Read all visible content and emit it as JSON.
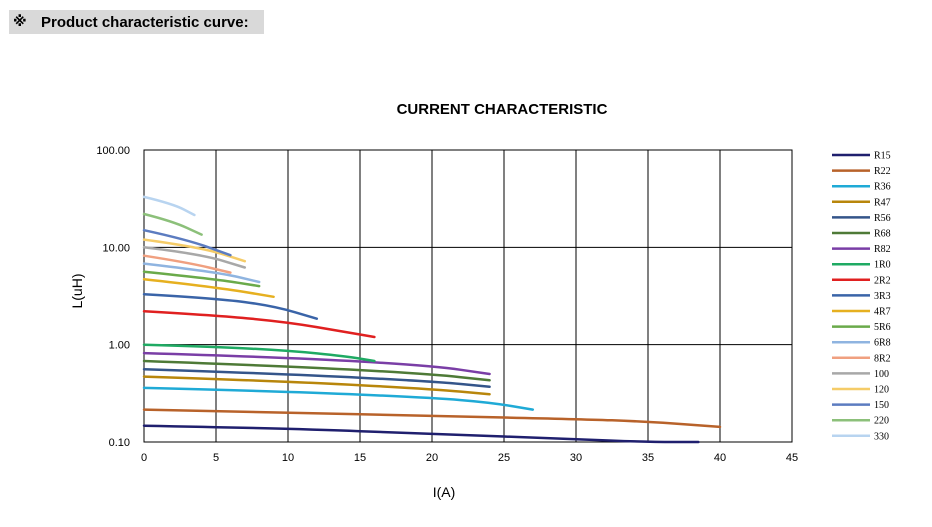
{
  "header": {
    "mark": "※",
    "title": "Product characteristic curve:"
  },
  "chart_data": {
    "type": "line",
    "title": "CURRENT CHARACTERISTIC",
    "xlabel": "I(A)",
    "ylabel": "L(uH)",
    "xlim": [
      0,
      45
    ],
    "ylim": [
      0.1,
      100
    ],
    "yscale": "log",
    "grid": true,
    "legend_position": "right",
    "x_ticks": [
      "0",
      "5",
      "10",
      "15",
      "20",
      "25",
      "30",
      "35",
      "40",
      "45"
    ],
    "y_ticks": [
      "0.10",
      "1.00",
      "10.00",
      "100.00"
    ],
    "series": [
      {
        "name": "R15",
        "color": "#1f1f6e",
        "x": [
          0,
          10,
          20,
          30,
          35,
          38.5
        ],
        "y": [
          0.147,
          0.138,
          0.121,
          0.107,
          0.1,
          0.1
        ]
      },
      {
        "name": "R22",
        "color": "#b8622a",
        "x": [
          0,
          10,
          20,
          30,
          35,
          40
        ],
        "y": [
          0.215,
          0.2,
          0.185,
          0.172,
          0.162,
          0.143
        ]
      },
      {
        "name": "R36",
        "color": "#1faad6",
        "x": [
          0,
          10,
          20,
          24,
          27
        ],
        "y": [
          0.36,
          0.33,
          0.285,
          0.255,
          0.215
        ]
      },
      {
        "name": "R47",
        "color": "#b8860b",
        "x": [
          0,
          10,
          20,
          24
        ],
        "y": [
          0.47,
          0.42,
          0.35,
          0.31
        ]
      },
      {
        "name": "R56",
        "color": "#34558a",
        "x": [
          0,
          10,
          20,
          24
        ],
        "y": [
          0.56,
          0.5,
          0.42,
          0.37
        ]
      },
      {
        "name": "R68",
        "color": "#4e7a37",
        "x": [
          0,
          10,
          20,
          24
        ],
        "y": [
          0.68,
          0.6,
          0.5,
          0.43
        ]
      },
      {
        "name": "R82",
        "color": "#7a3ea6",
        "x": [
          0,
          10,
          20,
          24
        ],
        "y": [
          0.82,
          0.74,
          0.61,
          0.5
        ]
      },
      {
        "name": "1R0",
        "color": "#1faa63",
        "x": [
          0,
          5,
          10,
          14,
          16
        ],
        "y": [
          1.0,
          0.95,
          0.87,
          0.76,
          0.68
        ]
      },
      {
        "name": "2R2",
        "color": "#e02020",
        "x": [
          0,
          5,
          10,
          14,
          16
        ],
        "y": [
          2.2,
          2.0,
          1.7,
          1.35,
          1.2
        ]
      },
      {
        "name": "3R3",
        "color": "#3a64a8",
        "x": [
          0,
          5,
          9,
          12
        ],
        "y": [
          3.3,
          3.0,
          2.5,
          1.85
        ]
      },
      {
        "name": "4R7",
        "color": "#e6b020",
        "x": [
          0,
          5,
          9
        ],
        "y": [
          4.7,
          3.9,
          3.1
        ]
      },
      {
        "name": "5R6",
        "color": "#6aaa4a",
        "x": [
          0,
          5,
          8
        ],
        "y": [
          5.6,
          4.7,
          4.0
        ]
      },
      {
        "name": "6R8",
        "color": "#8fb4e0",
        "x": [
          0,
          5,
          8
        ],
        "y": [
          6.8,
          5.6,
          4.4
        ]
      },
      {
        "name": "8R2",
        "color": "#f0a080",
        "x": [
          0,
          3,
          6
        ],
        "y": [
          8.2,
          7.0,
          5.5
        ]
      },
      {
        "name": "100",
        "color": "#a8a8a8",
        "x": [
          0,
          4,
          7
        ],
        "y": [
          10.0,
          8.5,
          6.2
        ]
      },
      {
        "name": "120",
        "color": "#f5cc68",
        "x": [
          0,
          4,
          7
        ],
        "y": [
          12.0,
          10.0,
          7.2
        ]
      },
      {
        "name": "150",
        "color": "#5c7cc0",
        "x": [
          0,
          3,
          6
        ],
        "y": [
          15.0,
          12.0,
          8.3
        ]
      },
      {
        "name": "220",
        "color": "#8cc07a",
        "x": [
          0,
          2,
          4
        ],
        "y": [
          22.0,
          18.5,
          13.5
        ]
      },
      {
        "name": "330",
        "color": "#b8d4f0",
        "x": [
          0,
          2,
          3.5
        ],
        "y": [
          33.0,
          28.0,
          21.5
        ]
      }
    ]
  }
}
